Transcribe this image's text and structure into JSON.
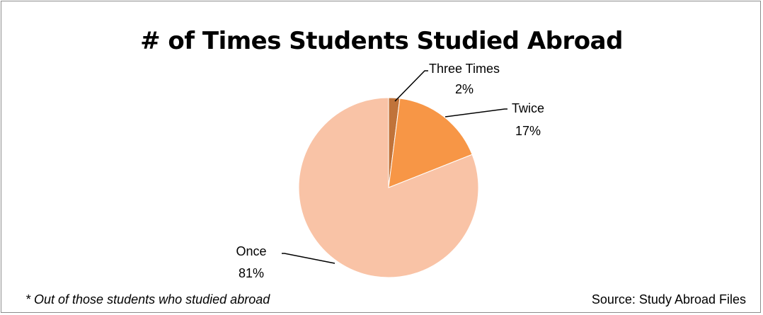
{
  "chart_data": {
    "type": "pie",
    "title": "# of Times Students Studied Abroad",
    "slices": [
      {
        "name": "Three Times",
        "value": 2,
        "label": "2%",
        "color": "#c0733a"
      },
      {
        "name": "Twice",
        "value": 17,
        "label": "17%",
        "color": "#f79646"
      },
      {
        "name": "Once",
        "value": 81,
        "label": "81%",
        "color": "#f9c3a6"
      }
    ],
    "legend": "none"
  },
  "footnote": "* Out of those students who studied abroad",
  "source": "Source: Study Abroad Files"
}
